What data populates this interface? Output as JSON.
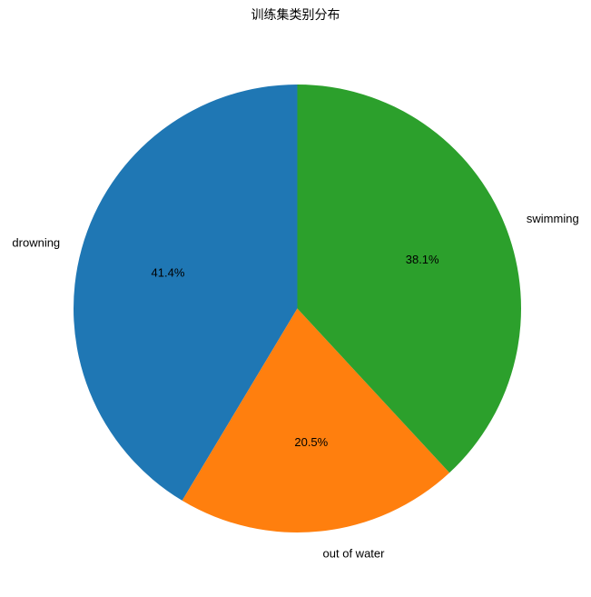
{
  "chart_data": {
    "type": "pie",
    "title": "训练集类别分布",
    "categories": [
      "drowning",
      "out of water",
      "swimming"
    ],
    "values": [
      41.4,
      20.5,
      38.1
    ],
    "percent_labels": [
      "41.4%",
      "20.5%",
      "38.1%"
    ],
    "colors": [
      "#1f77b4",
      "#ff7f0e",
      "#2ca02c"
    ],
    "start_angle_deg": 90,
    "direction": "counterclockwise",
    "legend": "none"
  }
}
